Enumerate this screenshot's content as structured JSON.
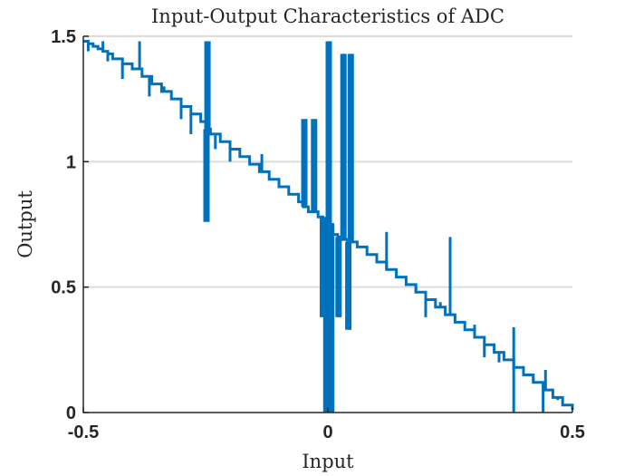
{
  "chart_data": {
    "type": "line",
    "title": "Input-Output Characteristics of ADC",
    "xlabel": "Input",
    "ylabel": "Output",
    "xlim": [
      -0.5,
      0.5
    ],
    "ylim": [
      0,
      1.5
    ],
    "xticks": [
      -0.5,
      0,
      0.5
    ],
    "xtick_labels": [
      "-0.5",
      "0",
      "0.5"
    ],
    "yticks": [
      0,
      0.5,
      1,
      1.5
    ],
    "ytick_labels": [
      "0",
      "0.5",
      "1",
      "1.5"
    ],
    "grid": "y-only",
    "color": "#0072BD",
    "series": [
      {
        "description": "staircase trend from (-0.5, 1.5) to (0.5, 0) with many vertical glitch spikes",
        "x": [
          -0.5,
          -0.49,
          -0.48,
          -0.47,
          -0.46,
          -0.45,
          -0.44,
          -0.42,
          -0.4,
          -0.38,
          -0.36,
          -0.34,
          -0.32,
          -0.3,
          -0.28,
          -0.26,
          -0.25,
          -0.24,
          -0.22,
          -0.2,
          -0.18,
          -0.16,
          -0.14,
          -0.12,
          -0.1,
          -0.08,
          -0.06,
          -0.05,
          -0.04,
          -0.02,
          -0.01,
          0.0,
          0.01,
          0.02,
          0.03,
          0.04,
          0.06,
          0.08,
          0.1,
          0.12,
          0.14,
          0.16,
          0.18,
          0.2,
          0.22,
          0.24,
          0.26,
          0.28,
          0.3,
          0.32,
          0.34,
          0.36,
          0.38,
          0.4,
          0.42,
          0.44,
          0.46,
          0.48,
          0.5
        ],
        "y": [
          1.48,
          1.47,
          1.46,
          1.45,
          1.44,
          1.43,
          1.41,
          1.39,
          1.37,
          1.34,
          1.31,
          1.28,
          1.25,
          1.22,
          1.19,
          1.16,
          1.13,
          1.11,
          1.08,
          1.05,
          1.02,
          0.99,
          0.96,
          0.93,
          0.9,
          0.87,
          0.84,
          0.82,
          0.8,
          0.78,
          0.77,
          0.75,
          0.71,
          0.7,
          0.69,
          0.68,
          0.66,
          0.63,
          0.6,
          0.57,
          0.54,
          0.51,
          0.48,
          0.45,
          0.42,
          0.39,
          0.36,
          0.33,
          0.3,
          0.27,
          0.24,
          0.21,
          0.18,
          0.15,
          0.12,
          0.09,
          0.06,
          0.03,
          0.01
        ],
        "spikes": [
          {
            "x": -0.49,
            "to": 1.44
          },
          {
            "x": -0.46,
            "to": 1.48
          },
          {
            "x": -0.45,
            "to": 1.4
          },
          {
            "x": -0.42,
            "to": 1.33
          },
          {
            "x": -0.385,
            "to": 1.48
          },
          {
            "x": -0.365,
            "to": 1.26
          },
          {
            "x": -0.335,
            "to": 1.3
          },
          {
            "x": -0.32,
            "to": 1.25
          },
          {
            "x": -0.3,
            "to": 1.17
          },
          {
            "x": -0.28,
            "to": 1.11
          },
          {
            "x": -0.25,
            "to": 0.76,
            "dense": true
          },
          {
            "x": -0.248,
            "to": 1.48,
            "dense": true
          },
          {
            "x": -0.23,
            "to": 1.05
          },
          {
            "x": -0.2,
            "to": 1.0
          },
          {
            "x": -0.165,
            "to": 1.02
          },
          {
            "x": -0.135,
            "to": 1.03
          },
          {
            "x": -0.1,
            "to": 0.93
          },
          {
            "x": -0.085,
            "to": 0.9
          },
          {
            "x": -0.07,
            "to": 0.87
          },
          {
            "x": -0.05,
            "to": 1.17,
            "dense": true
          },
          {
            "x": -0.04,
            "to": 0.8,
            "dense": true
          },
          {
            "x": -0.03,
            "to": 1.17,
            "dense": true
          },
          {
            "x": -0.012,
            "to": 0.38,
            "dense": true
          },
          {
            "x": -0.005,
            "to": 0.0,
            "dense": true
          },
          {
            "x": 0.0,
            "to": 1.48,
            "dense": true
          },
          {
            "x": 0.005,
            "to": 0.0,
            "dense": true
          },
          {
            "x": 0.02,
            "to": 0.38,
            "dense": true
          },
          {
            "x": 0.03,
            "to": 1.43,
            "dense": true
          },
          {
            "x": 0.04,
            "to": 0.33,
            "dense": true
          },
          {
            "x": 0.045,
            "to": 1.43,
            "dense": true
          },
          {
            "x": 0.08,
            "to": 0.63
          },
          {
            "x": 0.12,
            "to": 0.72
          },
          {
            "x": 0.18,
            "to": 0.5
          },
          {
            "x": 0.2,
            "to": 0.38
          },
          {
            "x": 0.23,
            "to": 0.44
          },
          {
            "x": 0.25,
            "to": 0.7
          },
          {
            "x": 0.3,
            "to": 0.35
          },
          {
            "x": 0.32,
            "to": 0.22
          },
          {
            "x": 0.35,
            "to": 0.2
          },
          {
            "x": 0.38,
            "to": 0.34
          },
          {
            "x": 0.38,
            "to": 0.0
          },
          {
            "x": 0.4,
            "to": 0.17
          },
          {
            "x": 0.42,
            "to": 0.14
          },
          {
            "x": 0.44,
            "to": 0.0
          },
          {
            "x": 0.445,
            "to": 0.17
          },
          {
            "x": 0.47,
            "to": 0.05
          }
        ]
      }
    ]
  }
}
